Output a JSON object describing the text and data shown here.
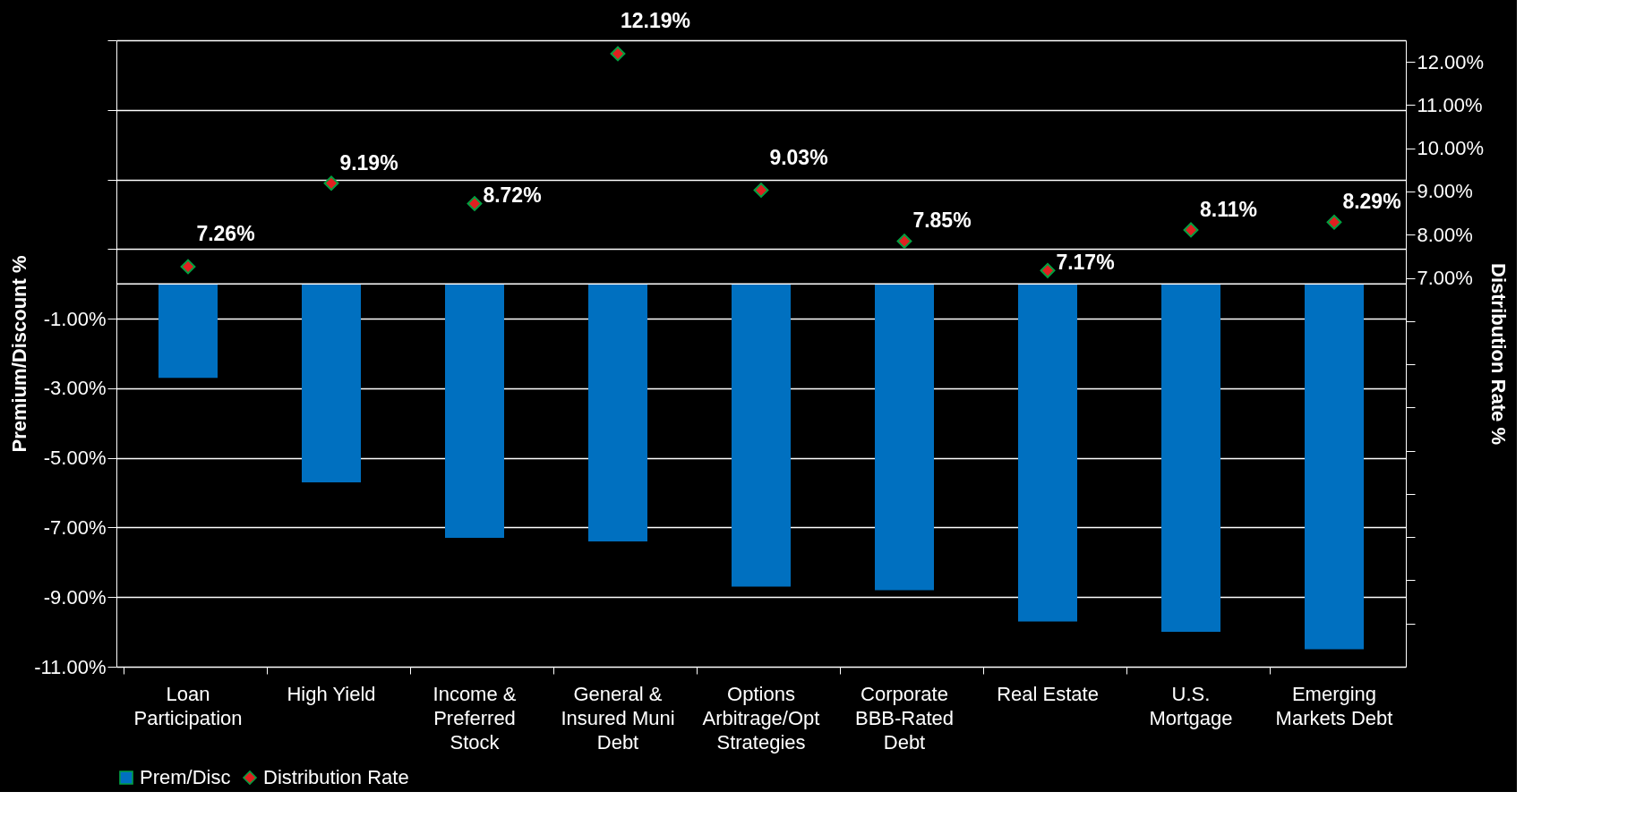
{
  "chart_data": {
    "type": "bar",
    "ylabel": "Premium/Discount %",
    "y2label": "Distribution Rate %",
    "categories": [
      "Loan Participation",
      "High Yield",
      "Income & Preferred Stock",
      "General & Insured Muni Debt",
      "Options Arbitrage/Opt Strategies",
      "Corporate BBB-Rated Debt",
      "Real Estate",
      "U.S. Mortgage",
      "Emerging Markets Debt"
    ],
    "series": [
      {
        "name": "Prem/Disc",
        "color": "#0070c0",
        "values": [
          -2.7,
          -5.7,
          -7.3,
          -7.4,
          -8.7,
          -8.8,
          -9.7,
          -10.0,
          -10.5
        ]
      },
      {
        "name": "Distribution Rate",
        "type": "scatter",
        "axis": "y2",
        "color": "#e02020",
        "marker": "diamond",
        "values": [
          7.26,
          9.19,
          8.72,
          12.19,
          9.03,
          7.85,
          7.17,
          8.11,
          8.29
        ],
        "value_labels": [
          "7.26%",
          "9.19%",
          "8.72%",
          "12.19%",
          "9.03%",
          "7.85%",
          "7.17%",
          "8.11%",
          "8.29%"
        ]
      }
    ],
    "ylim": [
      -11,
      7
    ],
    "yticks": [
      {
        "value": -11,
        "label": "-11.00%"
      },
      {
        "value": -9,
        "label": "-9.00%"
      },
      {
        "value": -7,
        "label": "-7.00%"
      },
      {
        "value": -5,
        "label": "-5.00%"
      },
      {
        "value": -3,
        "label": "-3.00%"
      },
      {
        "value": -1,
        "label": "-1.00%"
      },
      {
        "value": 1,
        "label": null
      },
      {
        "value": 3,
        "label": null
      },
      {
        "value": 5,
        "label": null
      },
      {
        "value": 7,
        "label": null
      }
    ],
    "y2lim": [
      -2,
      12.5
    ],
    "y2ticks": [
      {
        "value": -1,
        "label": null
      },
      {
        "value": 0,
        "label": null
      },
      {
        "value": 1,
        "label": null
      },
      {
        "value": 2,
        "label": null
      },
      {
        "value": 3,
        "label": null
      },
      {
        "value": 4,
        "label": null
      },
      {
        "value": 5,
        "label": null
      },
      {
        "value": 6,
        "label": null
      },
      {
        "value": 7,
        "label": "7.00%"
      },
      {
        "value": 8,
        "label": "8.00%"
      },
      {
        "value": 9,
        "label": "9.00%"
      },
      {
        "value": 10,
        "label": "10.00%"
      },
      {
        "value": 11,
        "label": "11.00%"
      },
      {
        "value": 12,
        "label": "12.00%"
      }
    ],
    "grid": "y",
    "legend": "bottom"
  }
}
